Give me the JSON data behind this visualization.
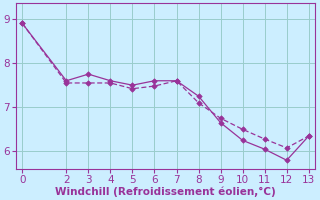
{
  "line1_x": [
    0,
    2,
    3,
    4,
    5,
    6,
    7,
    8,
    9,
    10,
    11,
    12,
    13
  ],
  "line1_y": [
    8.9,
    7.6,
    7.75,
    7.6,
    7.5,
    7.6,
    7.6,
    7.25,
    6.65,
    6.25,
    6.05,
    5.8,
    6.35
  ],
  "line2_x": [
    0,
    2,
    3,
    4,
    5,
    6,
    7,
    8,
    9,
    10,
    11,
    12,
    13
  ],
  "line2_y": [
    8.9,
    7.55,
    7.55,
    7.55,
    7.42,
    7.48,
    7.6,
    7.1,
    6.75,
    6.5,
    6.28,
    6.08,
    6.35
  ],
  "line_color": "#993399",
  "bg_color": "#cceeff",
  "grid_color": "#99cccc",
  "xlabel": "Windchill (Refroidissement éolien,°C)",
  "xlabel_color": "#993399",
  "tick_color": "#993399",
  "axis_color": "#993399",
  "xlim": [
    -0.3,
    13.3
  ],
  "ylim": [
    5.6,
    9.35
  ],
  "yticks": [
    6,
    7,
    8,
    9
  ],
  "xticks": [
    0,
    2,
    3,
    4,
    5,
    6,
    7,
    8,
    9,
    10,
    11,
    12,
    13
  ],
  "xlabel_fontsize": 7.5,
  "tick_fontsize": 7.5
}
